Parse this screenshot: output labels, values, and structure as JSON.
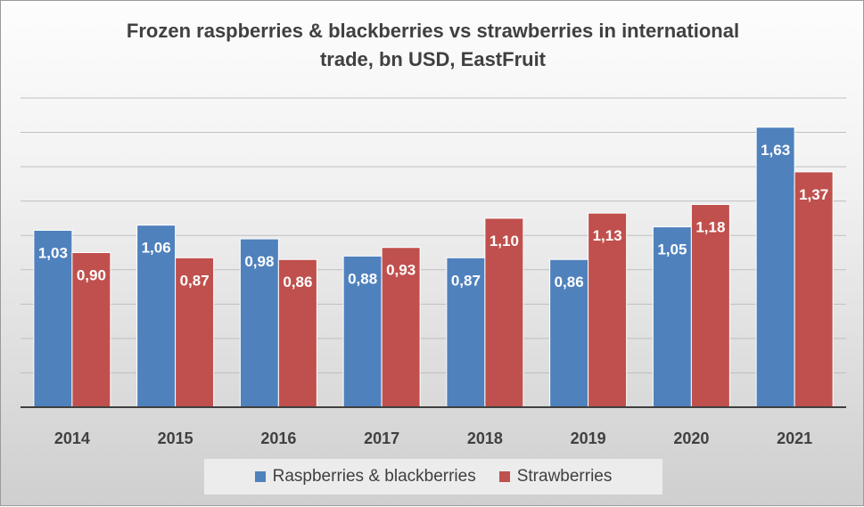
{
  "chart_data": {
    "type": "bar",
    "title_lines": [
      "Frozen raspberries & blackberries vs strawberries in international",
      "trade, bn USD, EastFruit"
    ],
    "categories": [
      "2014",
      "2015",
      "2016",
      "2017",
      "2018",
      "2019",
      "2020",
      "2021"
    ],
    "series": [
      {
        "name": "Raspberries & blackberries",
        "color": "#4f81bd",
        "values": [
          1.03,
          1.06,
          0.98,
          0.88,
          0.87,
          0.86,
          1.05,
          1.63
        ],
        "labels": [
          "1,03",
          "1,06",
          "0,98",
          "0,88",
          "0,87",
          "0,86",
          "1,05",
          "1,63"
        ]
      },
      {
        "name": "Strawberries",
        "color": "#c0504d",
        "values": [
          0.9,
          0.87,
          0.86,
          0.93,
          1.1,
          1.13,
          1.18,
          1.37
        ],
        "labels": [
          "0,90",
          "0,87",
          "0,86",
          "0,93",
          "1,10",
          "1,13",
          "1,18",
          "1,37"
        ]
      }
    ],
    "ylim": [
      0,
      1.8
    ],
    "gridlines": true,
    "legend_position": "bottom"
  }
}
